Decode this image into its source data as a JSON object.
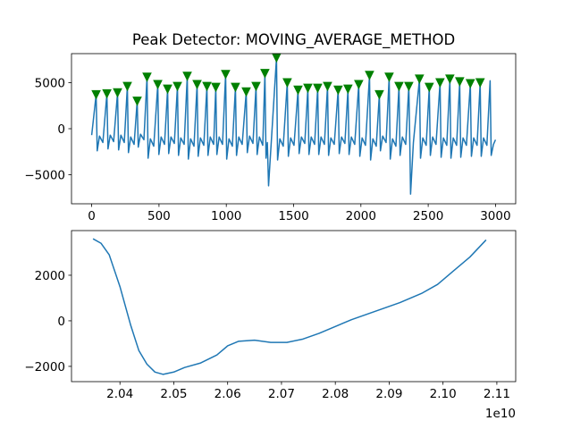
{
  "chart_data": [
    {
      "type": "line",
      "title": "Peak Detector: MOVING_AVERAGE_METHOD",
      "x": [
        0,
        33,
        41,
        58,
        83,
        113,
        121,
        138,
        163,
        192,
        200,
        217,
        242,
        265,
        273,
        290,
        315,
        338,
        346,
        363,
        388,
        411,
        419,
        436,
        461,
        491,
        499,
        516,
        541,
        564,
        572,
        589,
        614,
        637,
        645,
        662,
        687,
        710,
        718,
        735,
        760,
        783,
        791,
        808,
        833,
        856,
        864,
        881,
        906,
        922,
        930,
        947,
        972,
        995,
        1003,
        1020,
        1045,
        1068,
        1076,
        1093,
        1118,
        1148,
        1156,
        1173,
        1198,
        1221,
        1229,
        1246,
        1271,
        1287,
        1295,
        1305,
        1314,
        1373,
        1381,
        1398,
        1423,
        1453,
        1461,
        1478,
        1503,
        1533,
        1541,
        1558,
        1583,
        1606,
        1614,
        1631,
        1656,
        1679,
        1687,
        1704,
        1729,
        1752,
        1760,
        1777,
        1802,
        1831,
        1839,
        1856,
        1881,
        1904,
        1912,
        1929,
        1954,
        1984,
        1992,
        2009,
        2034,
        2064,
        2072,
        2089,
        2114,
        2137,
        2145,
        2162,
        2187,
        2210,
        2218,
        2235,
        2260,
        2283,
        2291,
        2308,
        2333,
        2356,
        2364,
        2369,
        2390,
        2435,
        2443,
        2460,
        2485,
        2508,
        2516,
        2533,
        2558,
        2588,
        2596,
        2613,
        2638,
        2661,
        2669,
        2686,
        2711,
        2734,
        2742,
        2759,
        2784,
        2813,
        2821,
        2838,
        2863,
        2886,
        2894,
        2911,
        2936,
        2960,
        2968,
        2985,
        3000
      ],
      "series": [
        {
          "color": "#1f77b4",
          "values": [
            -700,
            3700,
            -2400,
            -800,
            -1500,
            3800,
            -2200,
            -700,
            -1400,
            3900,
            -2300,
            -700,
            -1500,
            4600,
            -2600,
            -900,
            -1700,
            3000,
            -2000,
            -600,
            -1200,
            5600,
            -3200,
            -1100,
            -1900,
            4800,
            -2800,
            -900,
            -1700,
            4300,
            -2700,
            -900,
            -1600,
            4600,
            -2900,
            -1000,
            -1700,
            5700,
            -3300,
            -1100,
            -1900,
            4800,
            -3000,
            -1000,
            -1800,
            4600,
            -2900,
            -900,
            -1700,
            4500,
            -2800,
            -900,
            -1700,
            5900,
            -3300,
            -1100,
            -1900,
            4500,
            -2900,
            -900,
            -1700,
            4000,
            -2600,
            -800,
            -1600,
            4600,
            -2800,
            -900,
            -1800,
            6000,
            -3200,
            -1500,
            -6200,
            7700,
            -3400,
            -1100,
            -1900,
            5000,
            -3000,
            -1000,
            -1800,
            4200,
            -2700,
            -900,
            -1600,
            4400,
            -2800,
            -900,
            -1700,
            4400,
            -2800,
            -900,
            -1700,
            4600,
            -2900,
            -1000,
            -1700,
            4200,
            -2700,
            -900,
            -1600,
            4300,
            -2800,
            -900,
            -1700,
            4800,
            -3000,
            -1000,
            -1800,
            5800,
            -3400,
            -1100,
            -1900,
            3700,
            -2400,
            -800,
            -1500,
            5600,
            -3300,
            -1100,
            -1900,
            4600,
            -2900,
            -900,
            -1700,
            4600,
            -2000,
            -7100,
            -1500,
            5400,
            -3200,
            -1000,
            -1800,
            4500,
            -2900,
            -900,
            -1700,
            5000,
            -3100,
            -1000,
            -1800,
            5400,
            -3200,
            -1000,
            -1800,
            5100,
            -3100,
            -1000,
            -1800,
            4900,
            -3000,
            -1000,
            -1800,
            5000,
            -3000,
            -1000,
            -1800,
            5200,
            -2900,
            -1700,
            -1200
          ]
        }
      ],
      "peaks": {
        "color": "green",
        "marker": "triangle-down",
        "x": [
          33,
          113,
          192,
          265,
          338,
          411,
          491,
          564,
          637,
          710,
          783,
          856,
          922,
          995,
          1068,
          1148,
          1221,
          1287,
          1373,
          1453,
          1533,
          1606,
          1679,
          1752,
          1831,
          1904,
          1984,
          2064,
          2137,
          2210,
          2283,
          2356,
          2435,
          2508,
          2588,
          2661,
          2734,
          2813,
          2886
        ],
        "values": [
          3700,
          3800,
          3900,
          4600,
          3000,
          5600,
          4800,
          4300,
          4600,
          5700,
          4800,
          4600,
          4500,
          5900,
          4500,
          4000,
          4600,
          6000,
          7700,
          5000,
          4200,
          4400,
          4400,
          4600,
          4200,
          4300,
          4800,
          5800,
          3700,
          5600,
          4600,
          4600,
          5400,
          4500,
          5000,
          5400,
          5100,
          4900,
          5000
        ]
      },
      "xlim": [
        -150,
        3150
      ],
      "ylim": [
        -8150,
        8150
      ],
      "xticks": [
        0,
        500,
        1000,
        1500,
        2000,
        2500,
        3000
      ],
      "yticks": [
        {
          "value": -5000,
          "label": "−5000"
        },
        0,
        5000
      ]
    },
    {
      "type": "line",
      "x": [
        2.035,
        2.0365,
        2.038,
        2.04,
        2.042,
        2.0435,
        2.045,
        2.0465,
        2.048,
        2.05,
        2.052,
        2.055,
        2.058,
        2.06,
        2.062,
        2.065,
        2.068,
        2.071,
        2.074,
        2.077,
        2.08,
        2.083,
        2.086,
        2.089,
        2.092,
        2.096,
        2.099,
        2.102,
        2.105,
        2.108
      ],
      "series": [
        {
          "color": "#1f77b4",
          "values": [
            3600,
            3400,
            2900,
            1500,
            -200,
            -1300,
            -1900,
            -2250,
            -2350,
            -2250,
            -2050,
            -1850,
            -1500,
            -1100,
            -900,
            -850,
            -950,
            -950,
            -800,
            -550,
            -250,
            50,
            300,
            550,
            800,
            1200,
            1600,
            2200,
            2800,
            3550
          ]
        }
      ],
      "x_offset_label": "1e10",
      "xlim": [
        2.031,
        2.1135
      ],
      "ylim": [
        -2670,
        3960
      ],
      "xticks": [
        2.04,
        2.05,
        2.06,
        2.07,
        2.08,
        2.09,
        {
          "value": 2.1,
          "label": "2.10"
        },
        2.11
      ],
      "yticks": [
        {
          "value": -2000,
          "label": "−2000"
        },
        0,
        2000
      ]
    }
  ]
}
